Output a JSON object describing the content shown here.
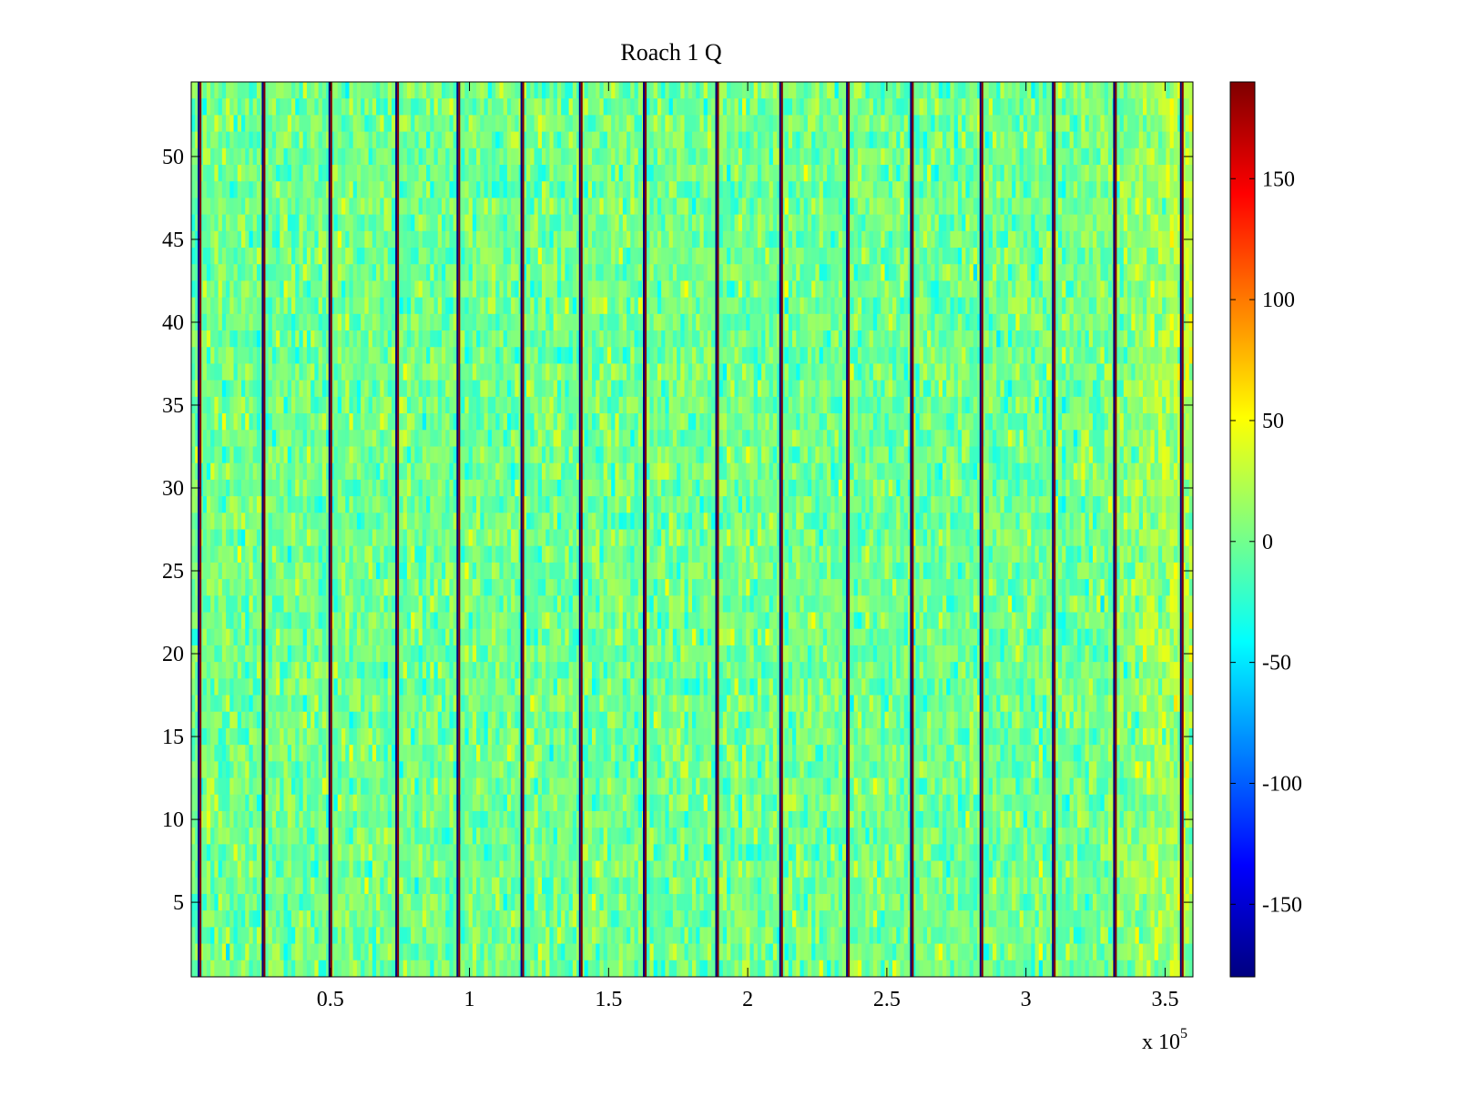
{
  "chart_data": {
    "type": "heatmap",
    "title": "Roach 1 Q",
    "xlabel": "",
    "ylabel": "",
    "x_exponent_label": "x 10",
    "x_exponent_power": "5",
    "xlim": [
      0,
      3.6
    ],
    "ylim": [
      0.5,
      54.5
    ],
    "x_ticks": [
      0.5,
      1,
      1.5,
      2,
      2.5,
      3,
      3.5
    ],
    "x_tick_labels": [
      "0.5",
      "1",
      "1.5",
      "2",
      "2.5",
      "3",
      "3.5"
    ],
    "y_ticks": [
      5,
      10,
      15,
      20,
      25,
      30,
      35,
      40,
      45,
      50
    ],
    "y_tick_labels": [
      "5",
      "10",
      "15",
      "20",
      "25",
      "30",
      "35",
      "40",
      "45",
      "50"
    ],
    "rows": 54,
    "colormap": "jet",
    "colorbar": {
      "range": [
        -180,
        190
      ],
      "ticks": [
        -150,
        -100,
        -50,
        0,
        50,
        100,
        150
      ],
      "tick_labels": [
        "-150",
        "-100",
        "-50",
        "0",
        "50",
        "100",
        "150"
      ]
    },
    "value_summary": {
      "background_mean": 0,
      "background_spread": 35,
      "right_edge_mean": 25
    },
    "spike_columns_x": [
      0.03,
      0.26,
      0.5,
      0.74,
      0.96,
      1.19,
      1.4,
      1.63,
      1.89,
      2.12,
      2.36,
      2.59,
      2.84,
      3.1,
      3.32,
      3.56
    ],
    "spike_values": [
      -180,
      190
    ],
    "grid": false
  }
}
